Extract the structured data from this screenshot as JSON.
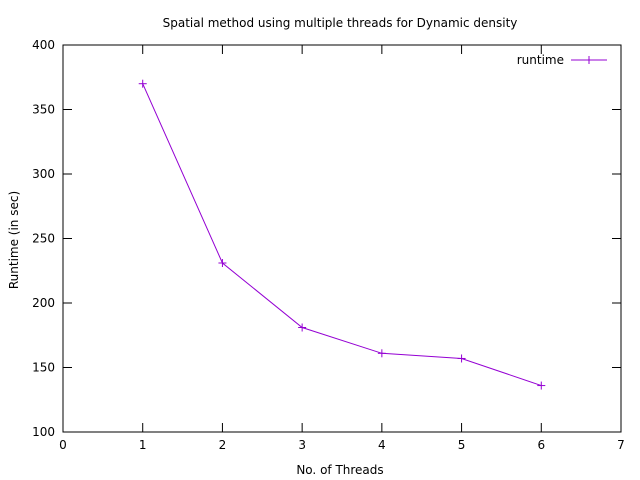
{
  "chart_data": {
    "type": "line",
    "title": "Spatial method using multiple threads for Dynamic density",
    "xlabel": "No. of Threads",
    "ylabel": "Runtime (in sec)",
    "xlim": [
      0,
      7
    ],
    "ylim": [
      100,
      400
    ],
    "xticks": [
      0,
      1,
      2,
      3,
      4,
      5,
      6,
      7
    ],
    "yticks": [
      100,
      150,
      200,
      250,
      300,
      350,
      400
    ],
    "grid": false,
    "legend_position": "top-right",
    "series": [
      {
        "name": "runtime",
        "color": "#9400d3",
        "marker": "plus",
        "x": [
          1,
          2,
          3,
          4,
          5,
          6
        ],
        "y": [
          370,
          231,
          181,
          161,
          157,
          136
        ]
      }
    ]
  }
}
